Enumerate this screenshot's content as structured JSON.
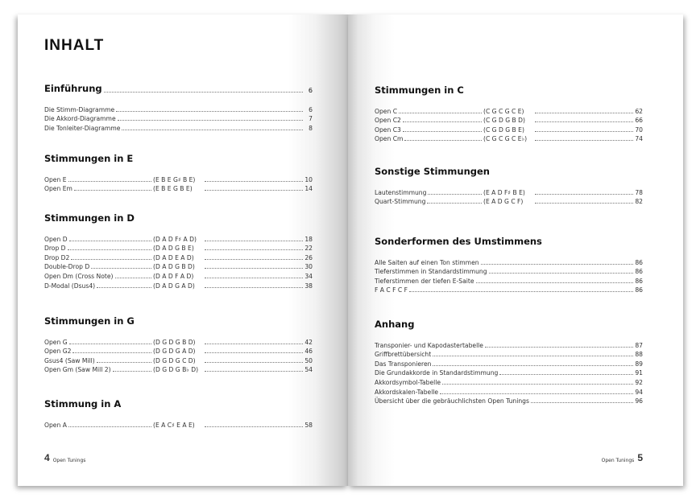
{
  "left": {
    "title": "INHALT",
    "intro": {
      "heading": "Einführung",
      "page": "6",
      "rows": [
        {
          "name": "Die Stimm-Diagramme",
          "page": "6"
        },
        {
          "name": "Die Akkord-Diagramme",
          "page": "7"
        },
        {
          "name": "Die Tonleiter-Diagramme",
          "page": "8"
        }
      ]
    },
    "sections": [
      {
        "heading": "Stimmungen in E",
        "rows": [
          {
            "name": "Open E",
            "notes": "(E B E G♯ B E)",
            "page": "10"
          },
          {
            "name": "Open Em",
            "notes": "(E B E G B E)",
            "page": "14"
          }
        ]
      },
      {
        "heading": "Stimmungen in D",
        "rows": [
          {
            "name": "Open D",
            "notes": "(D A D F♯ A D)",
            "page": "18"
          },
          {
            "name": "Drop D",
            "notes": "(D A D G B E)",
            "page": "22"
          },
          {
            "name": "Drop D2",
            "notes": "(D A D E A D)",
            "page": "26"
          },
          {
            "name": "Double-Drop D",
            "notes": "(D A D G B D)",
            "page": "30"
          },
          {
            "name": "Open Dm (Cross Note)",
            "notes": "(D A D F A D)",
            "page": "34"
          },
          {
            "name": "D-Modal (Dsus4)",
            "notes": "(D A D G A D)",
            "page": "38"
          }
        ]
      },
      {
        "heading": "Stimmungen in G",
        "rows": [
          {
            "name": "Open G",
            "notes": "(D G D G B D)",
            "page": "42"
          },
          {
            "name": "Open G2",
            "notes": "(D G D G A D)",
            "page": "46"
          },
          {
            "name": "Gsus4 (Saw Mill)",
            "notes": "(D G D G C D)",
            "page": "50"
          },
          {
            "name": "Open Gm (Saw Mill 2)",
            "notes": "(D G D G B♭ D)",
            "page": "54"
          }
        ]
      },
      {
        "heading": "Stimmung in A",
        "rows": [
          {
            "name": "Open A",
            "notes": "(E A C♯ E A E)",
            "page": "58"
          }
        ]
      }
    ],
    "footer": {
      "number": "4",
      "label": "Open Tunings"
    }
  },
  "right": {
    "sections": [
      {
        "heading": "Stimmungen in C",
        "rows": [
          {
            "name": "Open C",
            "notes": "(C G C G C E)",
            "page": "62"
          },
          {
            "name": "Open C2",
            "notes": "(C G D G B D)",
            "page": "66"
          },
          {
            "name": "Open C3",
            "notes": "(C G D G B E)",
            "page": "70"
          },
          {
            "name": "Open Cm",
            "notes": "(C G C G C E♭)",
            "page": "74"
          }
        ]
      },
      {
        "heading": "Sonstige Stimmungen",
        "rows": [
          {
            "name": "Lautenstimmung",
            "notes": "(E A D F♯ B E)",
            "page": "78"
          },
          {
            "name": "Quart-Stimmung",
            "notes": "(E A D G C F)",
            "page": "82"
          }
        ]
      }
    ],
    "sonder": {
      "heading": "Sonderformen des Umstimmens",
      "rows": [
        {
          "name": "Alle Saiten auf einen Ton stimmen",
          "page": "86"
        },
        {
          "name": "Tieferstimmen in Standardstimmung",
          "page": "86"
        },
        {
          "name": "Tieferstimmen der tiefen E-Saite",
          "page": "86"
        },
        {
          "name": "F A C F C F",
          "page": "86"
        }
      ]
    },
    "anhang": {
      "heading": "Anhang",
      "rows": [
        {
          "name": "Transponier- und Kapodastertabelle",
          "page": "87"
        },
        {
          "name": "Griffbrettübersicht",
          "page": "88"
        },
        {
          "name": "Das Transponieren",
          "page": "89"
        },
        {
          "name": "Die Grundakkorde in Standardstimmung",
          "page": "91"
        },
        {
          "name": "Akkordsymbol-Tabelle",
          "page": "92"
        },
        {
          "name": "Akkordskalen-Tabelle",
          "page": "94"
        },
        {
          "name": "Übersicht über die gebräuchlichsten Open Tunings",
          "page": "96"
        }
      ]
    },
    "footer": {
      "number": "5",
      "label": "Open Tunings"
    }
  }
}
